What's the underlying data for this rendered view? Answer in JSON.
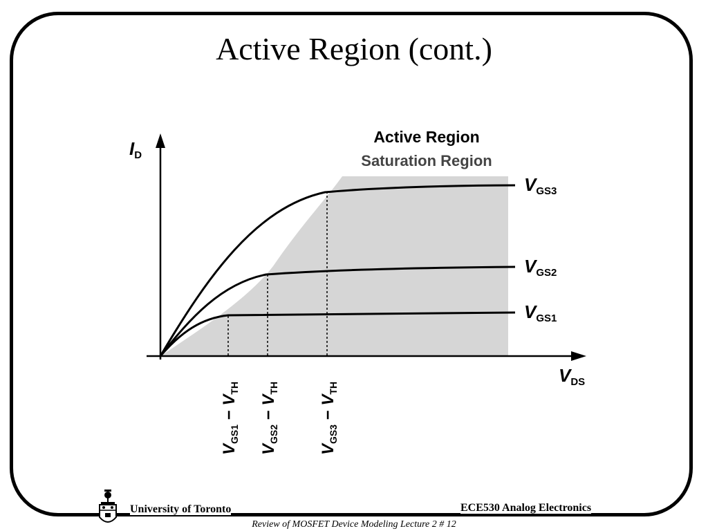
{
  "slide": {
    "title": "Active Region (cont.)"
  },
  "diagram": {
    "region_label_active": "Active Region",
    "region_label_saturation": "Saturation Region",
    "y_axis": {
      "main": "I",
      "sub": "D"
    },
    "x_axis": {
      "main": "V",
      "sub": "DS"
    },
    "curves": [
      {
        "main": "V",
        "sub": "GS1"
      },
      {
        "main": "V",
        "sub": "GS2"
      },
      {
        "main": "V",
        "sub": "GS3"
      }
    ],
    "overdrive_labels": [
      {
        "v": "V",
        "gs_sub": "GS1",
        "minus": " − ",
        "v2": "V",
        "th_sub": "TH"
      },
      {
        "v": "V",
        "gs_sub": "GS2",
        "minus": " − ",
        "v2": "V",
        "th_sub": "TH"
      },
      {
        "v": "V",
        "gs_sub": "GS3",
        "minus": " − ",
        "v2": "V",
        "th_sub": "TH"
      }
    ],
    "colors": {
      "shade": "#d6d6d6",
      "line": "#000000"
    }
  },
  "footer": {
    "left": "University of Toronto",
    "right": "ECE530 Analog Electronics",
    "subtitle": "Review of MOSFET Device Modeling Lecture 2 # 12"
  }
}
